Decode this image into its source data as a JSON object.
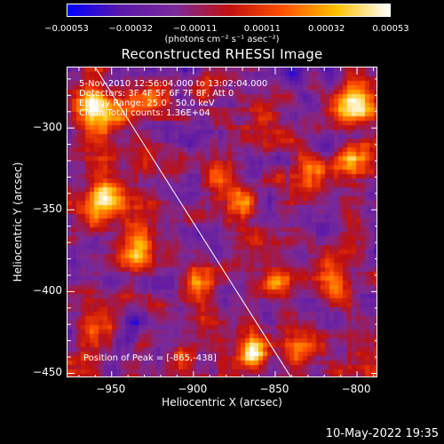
{
  "colorbar": {
    "ticks": [
      "-0.00053",
      "-0.00032",
      "-0.00011",
      "0.00011",
      "0.00032",
      "0.00053"
    ],
    "unit_label": "(photons cm⁻² s⁻¹ asec⁻²)",
    "range": [
      -0.00053,
      0.00053
    ],
    "colors": [
      "#0000ff",
      "#5a18a8",
      "#7a2a9a",
      "#c01010",
      "#ff5000",
      "#ffc000",
      "#ffffff"
    ]
  },
  "chart_data": {
    "type": "heatmap",
    "title": "Reconstructed RHESSI Image",
    "xlabel": "Heliocentric X (arcsec)",
    "ylabel": "Heliocentric Y (arcsec)",
    "xlim": [
      -977,
      -787
    ],
    "ylim": [
      -453,
      -263
    ],
    "xticks": [
      {
        "value": -950,
        "label": "-950"
      },
      {
        "value": -900,
        "label": "-900"
      },
      {
        "value": -850,
        "label": "-850"
      },
      {
        "value": -800,
        "label": "-800"
      }
    ],
    "yticks": [
      {
        "value": -300,
        "label": "-300"
      },
      {
        "value": -350,
        "label": "-350"
      },
      {
        "value": -400,
        "label": "-400"
      },
      {
        "value": -450,
        "label": "-450"
      }
    ],
    "annotations": {
      "time_range": "5-Nov-2010 12:56:04.000 to 13:02:04.000",
      "detectors": "Detectors: 3F 4F 5F 6F 7F 8F, Att 0",
      "energy": "Energy Range: 25.0 - 50.0 keV",
      "method": "Clean    Total counts: 1.36E+04",
      "peak": "Position of Peak = [-865,-438]"
    },
    "peak": {
      "x": -865,
      "y": -438
    },
    "limb_line": {
      "x": [
        -960,
        -840
      ],
      "y": [
        -263,
        -453
      ]
    },
    "bright_sources": [
      {
        "x": -865,
        "y": -438,
        "amp": 1.0,
        "sigma": 6
      },
      {
        "x": -960,
        "y": -290,
        "amp": 0.75,
        "sigma": 10
      },
      {
        "x": -955,
        "y": -345,
        "amp": 0.8,
        "sigma": 9
      },
      {
        "x": -935,
        "y": -375,
        "amp": 0.75,
        "sigma": 8
      },
      {
        "x": -800,
        "y": -285,
        "amp": 0.85,
        "sigma": 9
      },
      {
        "x": -800,
        "y": -320,
        "amp": 0.7,
        "sigma": 8
      },
      {
        "x": -925,
        "y": -285,
        "amp": 0.55,
        "sigma": 8
      },
      {
        "x": -885,
        "y": -330,
        "amp": 0.45,
        "sigma": 7
      },
      {
        "x": -870,
        "y": -345,
        "amp": 0.5,
        "sigma": 7
      },
      {
        "x": -900,
        "y": -395,
        "amp": 0.5,
        "sigma": 7
      },
      {
        "x": -850,
        "y": -395,
        "amp": 0.5,
        "sigma": 7
      },
      {
        "x": -815,
        "y": -390,
        "amp": 0.55,
        "sigma": 8
      },
      {
        "x": -830,
        "y": -330,
        "amp": 0.45,
        "sigma": 7
      },
      {
        "x": -960,
        "y": -425,
        "amp": 0.45,
        "sigma": 7
      },
      {
        "x": -835,
        "y": -435,
        "amp": 0.5,
        "sigma": 7
      },
      {
        "x": -905,
        "y": -440,
        "amp": 0.35,
        "sigma": 6
      }
    ]
  },
  "footer": "10-May-2022 19:35"
}
